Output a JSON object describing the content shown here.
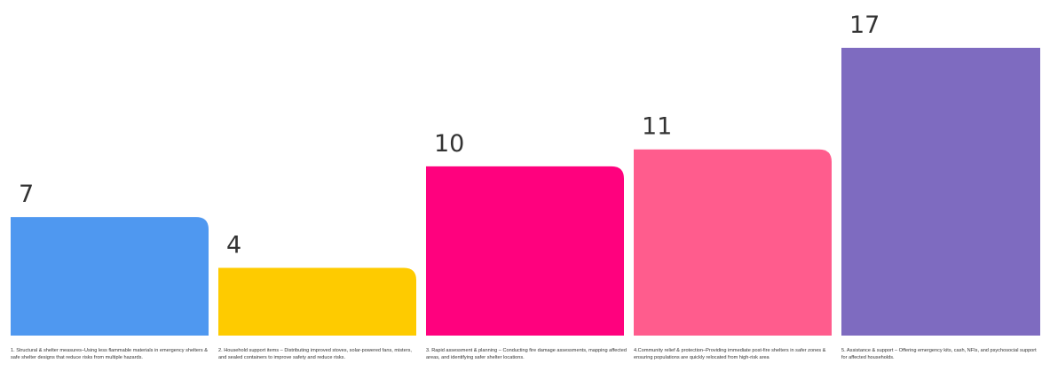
{
  "chart_data": {
    "type": "bar",
    "categories": [
      "1. Structural & shelter measures–Using less flammable materials in emergency shelters & safe shelter designs that reduce risks from multiple hazards.",
      "2. Household support items – Distributing improved stoves, solar-powered fans, misters, and sealed containers to improve safety and reduce risks.",
      "3. Rapid assessment & planning – Conducting fire damage assessments, mapping affected areas, and identifying safer shelter locations.",
      "4.Community relief & protection–Providing immediate post-fire shelters in safer zones & ensuring populations are quickly relocated from high-risk area",
      "5. Assistance & support – Offering emergency kits, cash, NFIs, and psychosocial support for affected households."
    ],
    "values": [
      7,
      4,
      10,
      11,
      17
    ],
    "data_labels": [
      "7",
      "4",
      "10",
      "11",
      "17"
    ],
    "colors": [
      "#4f98f0",
      "#fecb00",
      "#ff017e",
      "#ff5c8d",
      "#7e6bc0"
    ],
    "ylim": [
      0,
      17
    ],
    "title": "",
    "xlabel": "",
    "ylabel": "",
    "grid": false,
    "legend": "none"
  }
}
